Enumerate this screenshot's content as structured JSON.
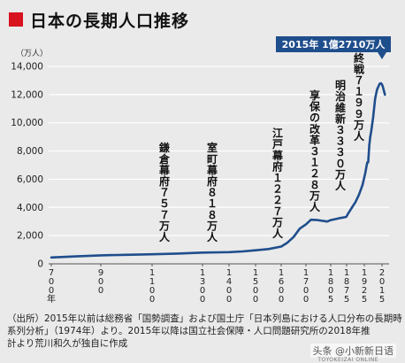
{
  "title": "日本の長期人口推移",
  "colors": {
    "accent": "#d8121f",
    "line": "#1f4e8c",
    "callout_bg": "#1f4e8c",
    "grid": "#ffffff"
  },
  "chart_data": {
    "type": "line",
    "unit_label": "（万人）",
    "ylim": [
      0,
      14000
    ],
    "y_ticks": [
      {
        "value": 0,
        "label": "0"
      },
      {
        "value": 2000,
        "label": "2,000"
      },
      {
        "value": 4000,
        "label": "4,000"
      },
      {
        "value": 6000,
        "label": "6,000"
      },
      {
        "value": 8000,
        "label": "8,000"
      },
      {
        "value": 10000,
        "label": "10,000"
      },
      {
        "value": 12000,
        "label": "12,000"
      },
      {
        "value": 14000,
        "label": "14,000"
      }
    ],
    "x_ticks": [
      {
        "value": 700,
        "label": "700年"
      },
      {
        "value": 900,
        "label": "900"
      },
      {
        "value": 1100,
        "label": "1100"
      },
      {
        "value": 1300,
        "label": "1300"
      },
      {
        "value": 1400,
        "label": "1400"
      },
      {
        "value": 1500,
        "label": "1500"
      },
      {
        "value": 1600,
        "label": "1600"
      },
      {
        "value": 1700,
        "label": "1700"
      },
      {
        "value": 1805,
        "label": "1805"
      },
      {
        "value": 1875,
        "label": "1875"
      },
      {
        "value": 1925,
        "label": "1925"
      },
      {
        "value": 2015,
        "label": "2015"
      }
    ],
    "series": [
      {
        "x": [
          700,
          800,
          900,
          1000,
          1100,
          1200,
          1300,
          1400,
          1450,
          1500,
          1550,
          1600,
          1625,
          1650,
          1675,
          1700,
          1721,
          1750,
          1790,
          1805,
          1834,
          1846,
          1850,
          1873,
          1880,
          1890,
          1900,
          1910,
          1920,
          1930,
          1940,
          1945,
          1950,
          1955,
          1960,
          1970,
          1980,
          1990,
          2000,
          2004,
          2010,
          2015,
          2020,
          2030
        ],
        "y": [
          450,
          530,
          600,
          640,
          680,
          730,
          800,
          830,
          880,
          960,
          1050,
          1227,
          1500,
          1900,
          2500,
          2800,
          3128,
          3100,
          3000,
          3100,
          3200,
          3250,
          3250,
          3330,
          3600,
          3990,
          4380,
          4910,
          5600,
          6450,
          7190,
          7199,
          8400,
          9000,
          9400,
          10400,
          11700,
          12360,
          12690,
          12780,
          12800,
          12710,
          12530,
          12000
        ]
      }
    ],
    "annotations": [
      {
        "x": 1185,
        "y": 757,
        "label": "鎌倉幕府７５７万人"
      },
      {
        "x": 1300,
        "y": 818,
        "label": "室町幕府８１８万人"
      },
      {
        "x": 1600,
        "y": 1227,
        "label": "江戸幕府１２２７万人"
      },
      {
        "x": 1721,
        "y": 3128,
        "label": "享保の改革３１２８万人"
      },
      {
        "x": 1873,
        "y": 3330,
        "label": "明治維新３３３０万人"
      },
      {
        "x": 1945,
        "y": 7199,
        "label": "終戦７１９９万人"
      }
    ],
    "callout": {
      "x": 2015,
      "y": 12710,
      "label": "2015年 1億2710万人"
    },
    "grid": true
  },
  "footnote": {
    "line1": "（出所）2015年以前は総務省「国勢調査」および国土庁「日本列島における人口分布の長期時",
    "line2": "系列分析」（1974年）より。2015年以降は国立社会保障・人口問題研究所の2018年推",
    "line3": "計より荒川和久が独自に作成"
  },
  "watermark": {
    "main": "头条 @小新新日语",
    "sub": "TOYOKEIZAI ONLINE"
  }
}
